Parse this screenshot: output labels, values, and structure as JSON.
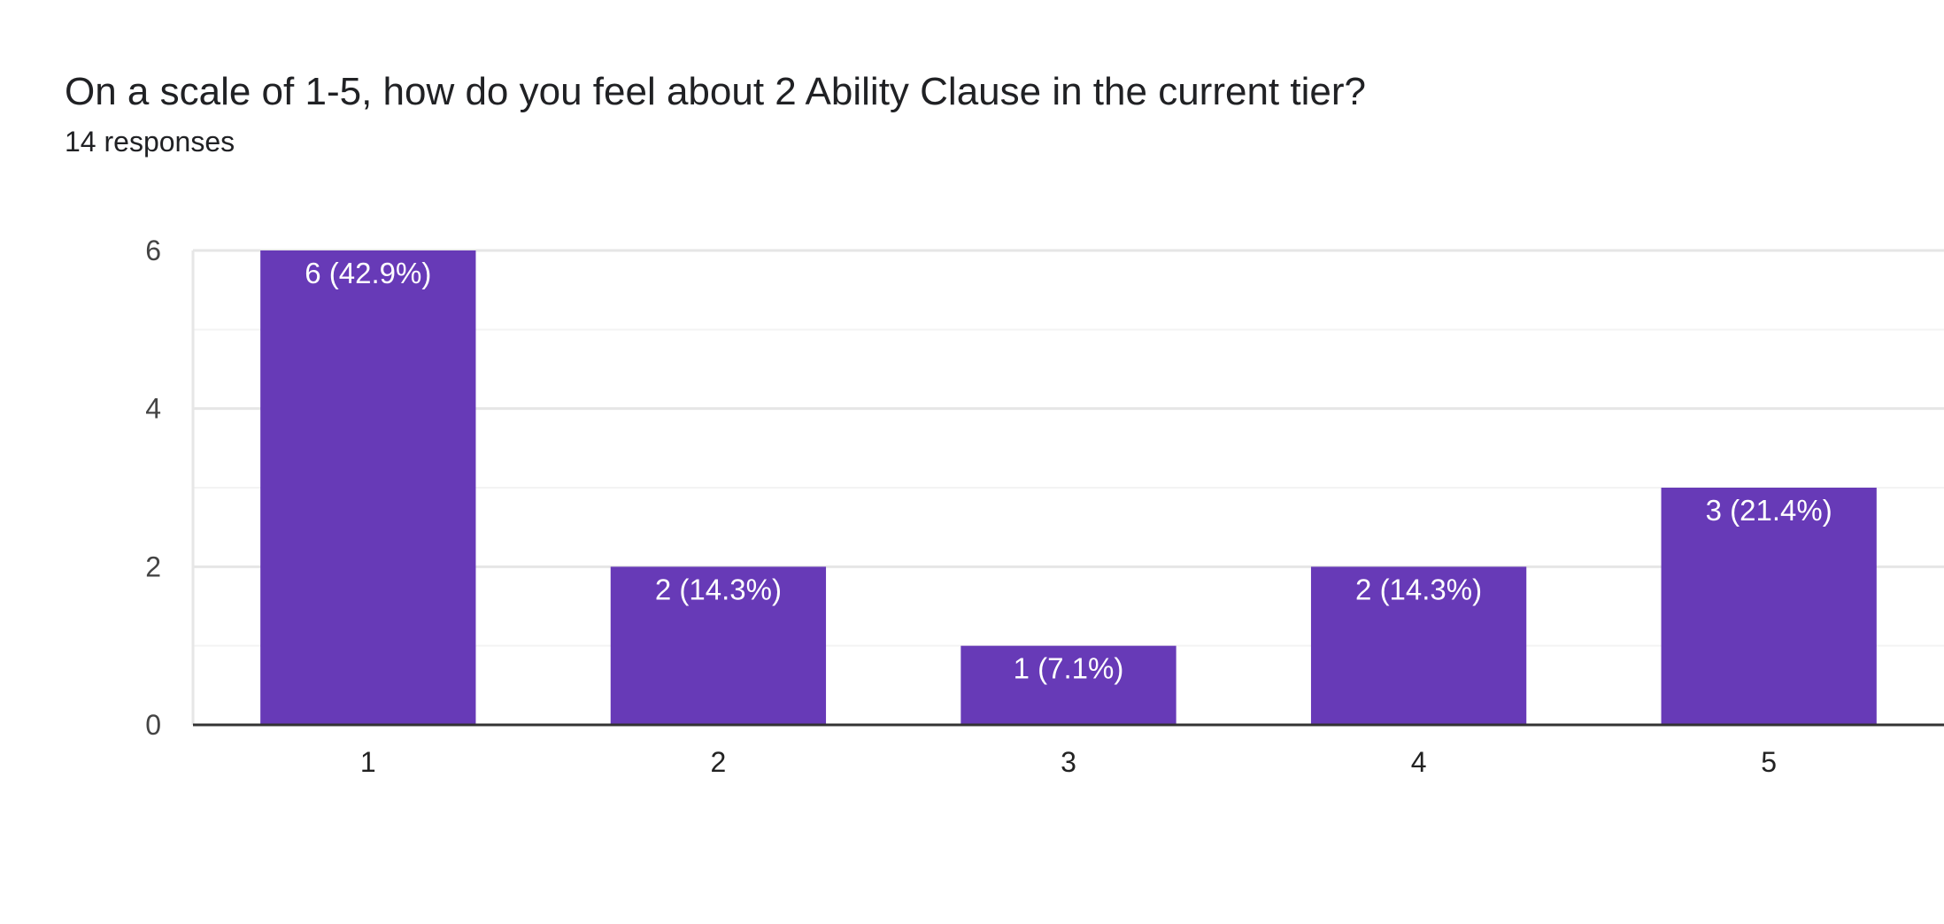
{
  "header": {
    "title": "On a scale of 1-5, how do you feel about 2 Ability Clause in the current tier?",
    "subtitle": "14 responses"
  },
  "colors": {
    "bar": "#673ab7",
    "grid_major": "#e6e6e6",
    "grid_minor": "#f3f3f3",
    "baseline": "#333333"
  },
  "chart_data": {
    "type": "bar",
    "title": "On a scale of 1-5, how do you feel about 2 Ability Clause in the current tier?",
    "subtitle": "14 responses",
    "categories": [
      "1",
      "2",
      "3",
      "4",
      "5"
    ],
    "values": [
      6,
      2,
      1,
      2,
      3
    ],
    "data_labels": [
      "6 (42.9%)",
      "2 (14.3%)",
      "1 (7.1%)",
      "2 (14.3%)",
      "3 (21.4%)"
    ],
    "ylim": [
      0,
      6
    ],
    "yticks": [
      "0",
      "2",
      "4",
      "6"
    ],
    "grid": true,
    "legend": "none"
  }
}
